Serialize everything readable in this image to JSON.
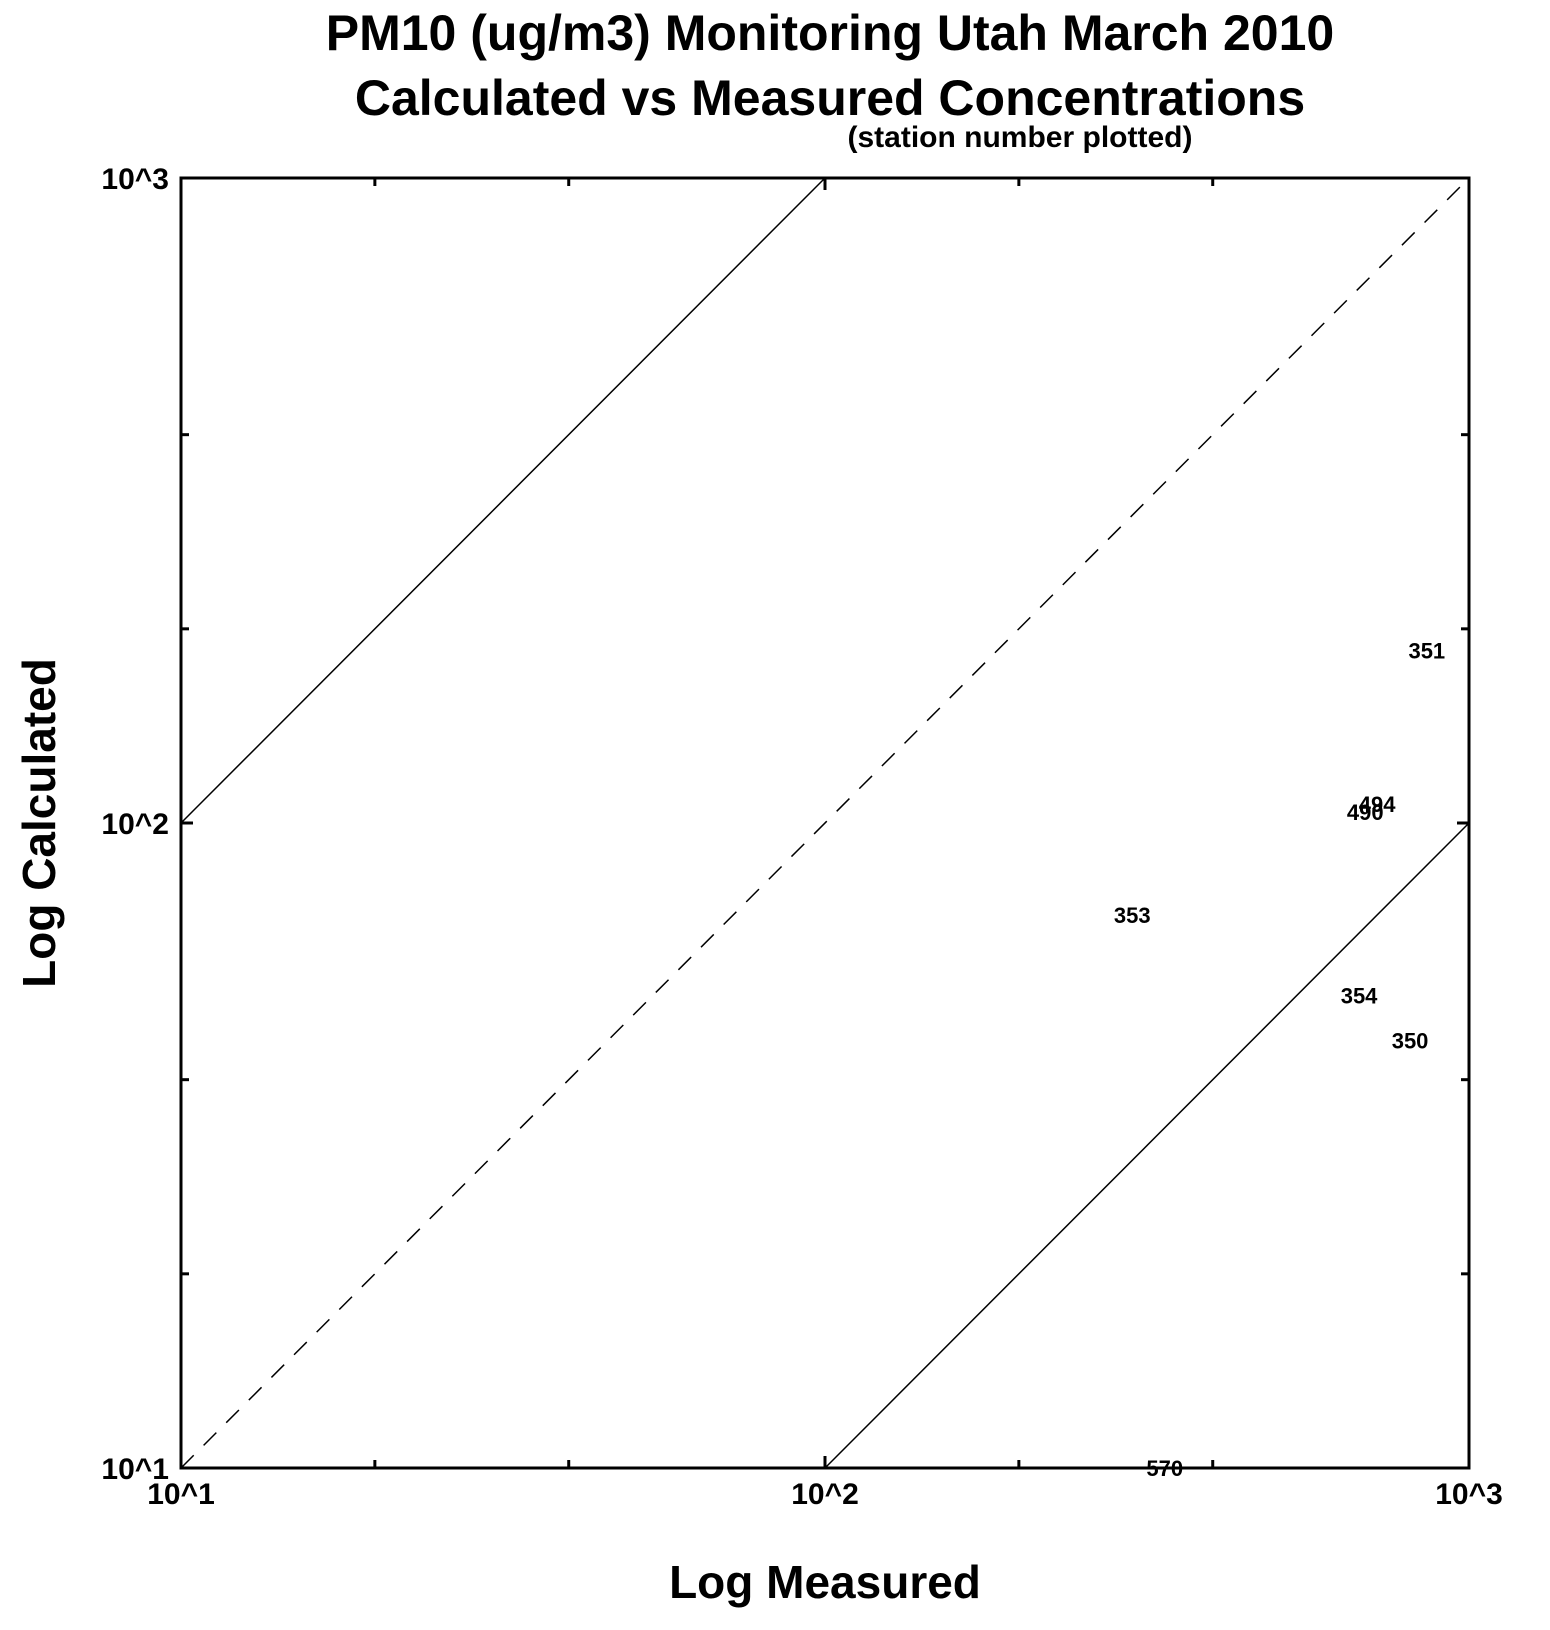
{
  "chart_data": {
    "type": "scatter",
    "title": "PM10 (ug/m3) Monitoring Utah March 2010",
    "subtitle": "Calculated vs Measured Concentrations",
    "note": "(station number plotted)",
    "xlabel": "Log Measured",
    "ylabel": "Log Calculated",
    "xscale": "log",
    "yscale": "log",
    "xlim": [
      10,
      1000
    ],
    "ylim": [
      10,
      1000
    ],
    "x_tick_labels": [
      "10^1",
      "10^2",
      "10^3"
    ],
    "y_tick_labels": [
      "10^1",
      "10^2",
      "10^3"
    ],
    "x_tick_values": [
      10,
      100,
      1000
    ],
    "y_tick_values": [
      10,
      100,
      1000
    ],
    "minor_tick_values": [
      20,
      40,
      200,
      400
    ],
    "grid": false,
    "reference_lines": [
      {
        "style": "dashed",
        "ratio": 1
      },
      {
        "style": "solid",
        "ratio": 10
      },
      {
        "style": "solid",
        "ratio": 0.1
      }
    ],
    "points": [
      {
        "label": "351",
        "x": 860,
        "y": 185
      },
      {
        "label": "494",
        "x": 720,
        "y": 107
      },
      {
        "label": "490",
        "x": 690,
        "y": 104
      },
      {
        "label": "353",
        "x": 300,
        "y": 72
      },
      {
        "label": "354",
        "x": 675,
        "y": 54
      },
      {
        "label": "350",
        "x": 810,
        "y": 46
      },
      {
        "label": "570",
        "x": 337,
        "y": 10
      }
    ]
  }
}
